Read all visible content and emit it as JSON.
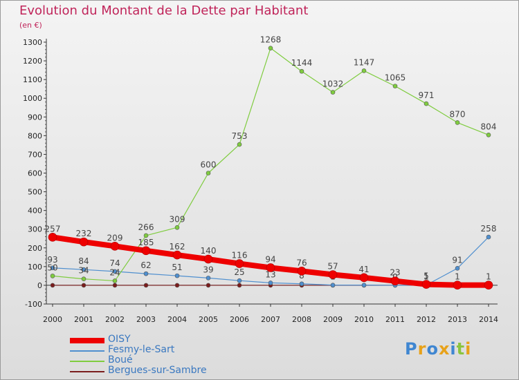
{
  "title": "Evolution du Montant de la Dette par Habitant",
  "subtitle": "(en €)",
  "logo": {
    "letters": [
      "P",
      "r",
      "o",
      "x",
      "i",
      "t",
      "i"
    ],
    "colors": [
      "#3f86d1",
      "#e8a21a",
      "#3f86d1",
      "#e8a21a",
      "#3f86d1",
      "#8bc43f",
      "#e8a21a"
    ]
  },
  "chart_data": {
    "type": "line",
    "x": [
      2000,
      2001,
      2002,
      2003,
      2004,
      2005,
      2006,
      2007,
      2008,
      2009,
      2010,
      2011,
      2012,
      2013,
      2014
    ],
    "ylim": [
      -100,
      1300
    ],
    "yticks": [
      -100,
      0,
      100,
      200,
      300,
      400,
      500,
      600,
      700,
      800,
      900,
      1000,
      1100,
      1200,
      1300
    ],
    "grid": false,
    "legend_position": "bottom-left",
    "series": [
      {
        "name": "OISY",
        "color": "#ee0000",
        "values": [
          257,
          232,
          209,
          185,
          162,
          140,
          116,
          94,
          76,
          57,
          41,
          23,
          5,
          1,
          1
        ]
      },
      {
        "name": "Fesmy-le-Sart",
        "color": "#4f8fcf",
        "values": [
          93,
          84,
          74,
          62,
          51,
          39,
          25,
          13,
          8,
          1,
          1,
          0,
          1,
          91,
          258
        ]
      },
      {
        "name": "Boué",
        "color": "#7fcc3f",
        "values": [
          50,
          34,
          24,
          266,
          309,
          600,
          753,
          1268,
          1144,
          1032,
          1147,
          1065,
          971,
          870,
          804
        ]
      },
      {
        "name": "Bergues-sur-Sambre",
        "color": "#7a1c1c",
        "values": [
          0,
          0,
          0,
          0,
          0,
          0,
          0,
          0,
          0,
          0,
          0,
          0,
          0,
          0,
          0
        ]
      }
    ]
  }
}
